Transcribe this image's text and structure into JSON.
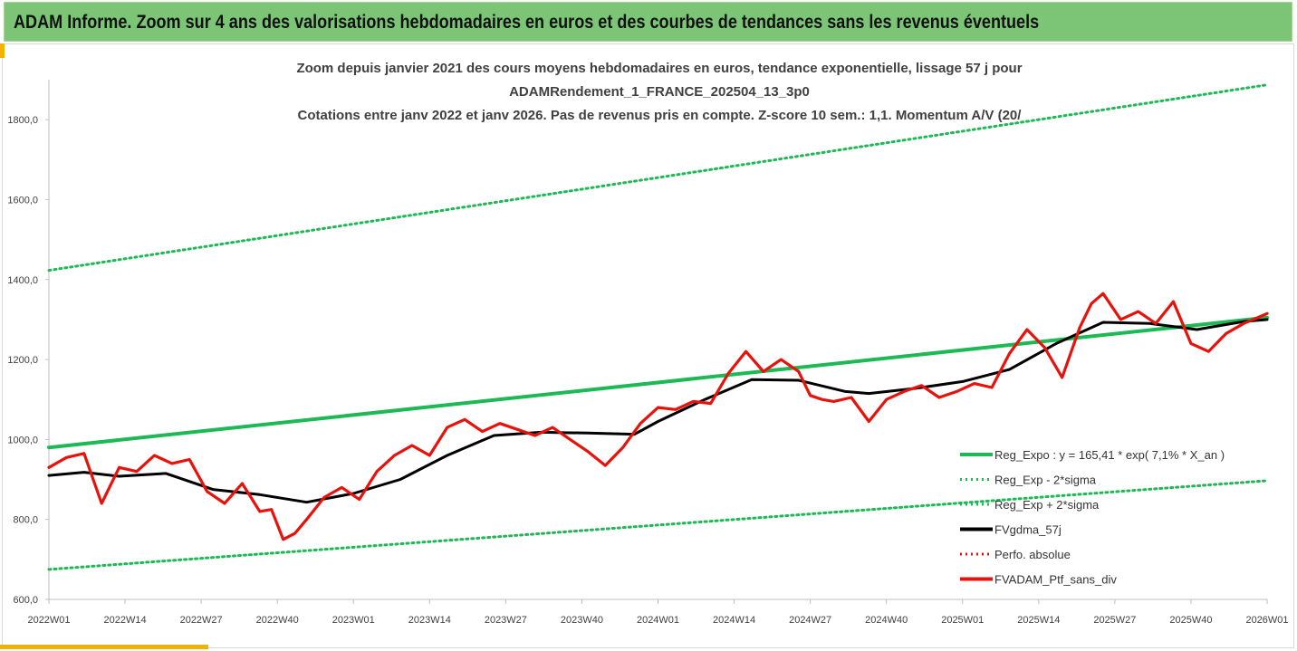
{
  "banner": {
    "title": "ADAM Informe. Zoom sur 4 ans des valorisations hebdomadaires en euros et des courbes de tendances sans les revenus éventuels"
  },
  "chart_data": {
    "type": "line",
    "title_lines": [
      "Zoom depuis janvier 2021 des cours moyens hebdomadaires  en euros, tendance exponentielle, lissage 57 j pour",
      "ADAMRendement_1_FRANCE_202504_13_3p0",
      "Cotations entre janv 2022 et janv 2026. Pas de revenus pris en compte. Z-score 10 sem.: 1,1. Momentum  A/V (20/"
    ],
    "y_ticks": [
      "600,0",
      "800,0",
      "1000,0",
      "1200,0",
      "1400,0",
      "1600,0",
      "1800,0"
    ],
    "ylim": [
      600,
      1900
    ],
    "x_ticks": [
      "2022W01",
      "2022W14",
      "2022W27",
      "2022W40",
      "2023W01",
      "2023W14",
      "2023W27",
      "2023W40",
      "2024W01",
      "2024W14",
      "2024W27",
      "2024W40",
      "2025W01",
      "2025W14",
      "2025W27",
      "2025W40",
      "2026W01"
    ],
    "xlim": [
      0,
      208
    ],
    "colors": {
      "reg": "#1db954",
      "sma": "#000000",
      "ptf": "#e8120c",
      "perf": "#e8120c"
    },
    "legend": [
      {
        "key": "reg",
        "label": "Reg_Expo : y = 165,41 * exp( 7,1% *  X_an )",
        "style": "solid-green"
      },
      {
        "key": "low",
        "label": "Reg_Exp - 2*sigma",
        "style": "dotted-green"
      },
      {
        "key": "high",
        "label": "Reg_Exp + 2*sigma",
        "style": "dotted-green"
      },
      {
        "key": "sma",
        "label": "FVgdma_57j",
        "style": "solid-black"
      },
      {
        "key": "perf",
        "label": "Perfo. absolue",
        "style": "dotted-red"
      },
      {
        "key": "ptf",
        "label": "FVADAM_Ptf_sans_div",
        "style": "solid-red"
      }
    ],
    "series": [
      {
        "name": "Reg_Expo",
        "x": [
          0,
          208
        ],
        "values": [
          980,
          1305
        ]
      },
      {
        "name": "Reg_Exp - 2*sigma",
        "x": [
          0,
          208
        ],
        "values": [
          675,
          897
        ]
      },
      {
        "name": "Reg_Exp + 2*sigma",
        "x": [
          0,
          208
        ],
        "values": [
          1423,
          1887
        ]
      },
      {
        "name": "FVgdma_57j",
        "x": [
          0,
          6,
          12,
          20,
          28,
          36,
          44,
          52,
          60,
          68,
          76,
          84,
          92,
          100,
          104,
          112,
          120,
          128,
          136,
          140,
          148,
          156,
          164,
          172,
          180,
          188,
          196,
          204,
          208
        ],
        "values": [
          910,
          918,
          908,
          915,
          875,
          862,
          843,
          865,
          900,
          960,
          1010,
          1018,
          1016,
          1013,
          1045,
          1100,
          1150,
          1148,
          1120,
          1115,
          1128,
          1145,
          1175,
          1240,
          1293,
          1290,
          1275,
          1295,
          1300
        ]
      },
      {
        "name": "FVADAM_Ptf_sans_div",
        "x": [
          0,
          3,
          6,
          9,
          12,
          15,
          18,
          21,
          24,
          27,
          30,
          33,
          36,
          38,
          40,
          42,
          44,
          47,
          50,
          53,
          56,
          59,
          62,
          65,
          68,
          71,
          74,
          77,
          80,
          83,
          86,
          89,
          92,
          95,
          98,
          101,
          104,
          107,
          110,
          113,
          116,
          119,
          122,
          125,
          128,
          130,
          132,
          134,
          137,
          140,
          143,
          146,
          149,
          152,
          155,
          158,
          161,
          164,
          167,
          170,
          173,
          176,
          178,
          180,
          183,
          186,
          189,
          192,
          195,
          198,
          201,
          204,
          208
        ],
        "values": [
          930,
          955,
          965,
          840,
          930,
          920,
          960,
          940,
          950,
          870,
          840,
          890,
          820,
          825,
          750,
          765,
          800,
          855,
          880,
          850,
          920,
          960,
          985,
          960,
          1030,
          1050,
          1020,
          1040,
          1025,
          1010,
          1030,
          1000,
          970,
          935,
          980,
          1040,
          1080,
          1075,
          1095,
          1090,
          1165,
          1220,
          1170,
          1200,
          1170,
          1110,
          1100,
          1095,
          1105,
          1045,
          1100,
          1120,
          1135,
          1105,
          1120,
          1140,
          1130,
          1215,
          1275,
          1230,
          1155,
          1280,
          1340,
          1365,
          1300,
          1320,
          1290,
          1345,
          1240,
          1220,
          1265,
          1290,
          1315
        ]
      }
    ]
  }
}
